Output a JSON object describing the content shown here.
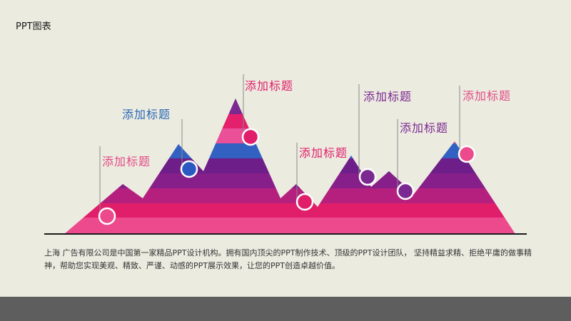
{
  "slide": {
    "title": "PPT图表",
    "body_text": "上海  广告有限公司是中国第一家精品PPT设计机构。拥有国内顶尖的PPT制作技术、顶级的PPT设计团队，  坚持精益求精、拒绝平庸的做事精神，帮助您实现美观、精致、严谨、动感的PPT展示效果，让您的PPT创造卓越价值。"
  },
  "colors": {
    "background": "#ecebe0",
    "stripes": [
      "#ec4a8c",
      "#e01e6a",
      "#b5207e",
      "#861f8a",
      "#6d1e88",
      "#3261c2",
      "#ea4f97",
      "#e41f6b",
      "#7b2890"
    ],
    "footer": "#5e5e5e"
  },
  "callouts": [
    {
      "label": "添加标题",
      "color": "#e24c86",
      "marker": "pink"
    },
    {
      "label": "添加标题",
      "color": "#2a68b5",
      "marker": "blue"
    },
    {
      "label": "添加标题",
      "color": "#e01e6a",
      "marker": "crimson"
    },
    {
      "label": "添加标题",
      "color": "#e01e6a",
      "marker": "crimson"
    },
    {
      "label": "添加标题",
      "color": "#7b2890",
      "marker": "purple"
    },
    {
      "label": "添加标题",
      "color": "#7b2890",
      "marker": "purple"
    },
    {
      "label": "添加标题",
      "color": "#e24c86",
      "marker": "pink"
    }
  ]
}
